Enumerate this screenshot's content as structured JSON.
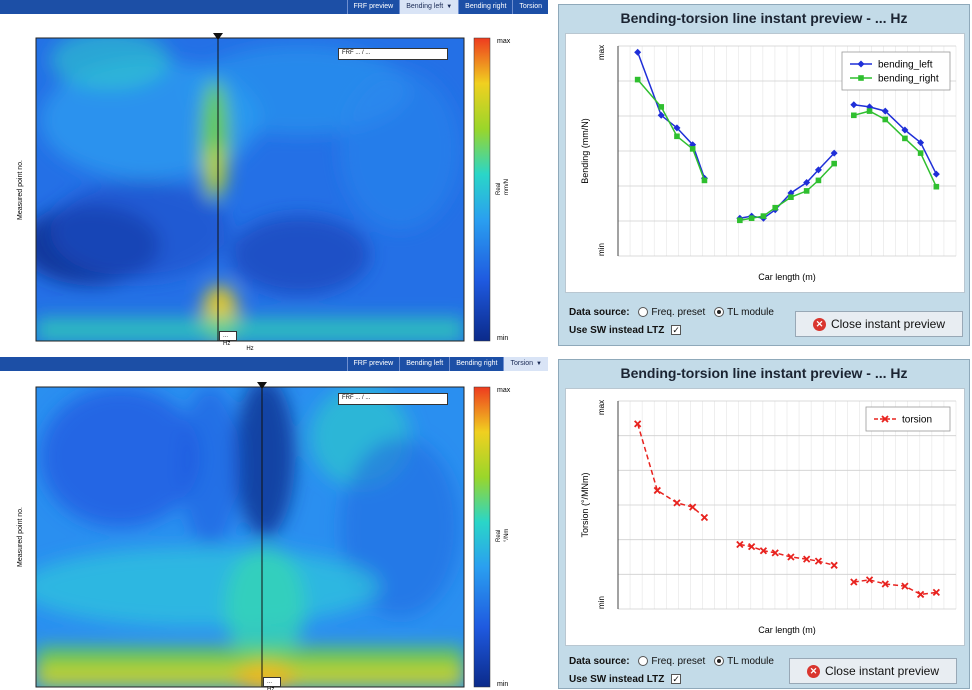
{
  "contour_top": {
    "tabs": [
      "FRF preview",
      "Bending left",
      "Bending right",
      "Torsion"
    ],
    "active_tab": "Bending left",
    "ylabel": "Measured point no.",
    "xlabel": "Hz",
    "frequency_marker": "... Hz",
    "frf_box": "FRF ... / ...",
    "colorbar": {
      "max": "max",
      "min": "min",
      "quantity": "Real",
      "unit": "mm/N"
    }
  },
  "contour_bottom": {
    "tabs": [
      "FRF preview",
      "Bending left",
      "Bending right",
      "Torsion"
    ],
    "active_tab": "Torsion",
    "ylabel": "Measured point no.",
    "frequency_marker": "... Hz",
    "frf_box": "FRF ... / ...",
    "colorbar": {
      "max": "max",
      "min": "min",
      "quantity": "Real",
      "unit": "°/Nm"
    }
  },
  "preview_bending": {
    "title": "Bending-torsion line instant preview -  ...  Hz",
    "data_source_label": "Data source:",
    "radio_freq": "Freq. preset",
    "radio_tl": "TL module",
    "use_sw_label": "Use SW instead LTZ",
    "close_label": "Close instant preview"
  },
  "preview_torsion": {
    "title": "Bending-torsion line instant preview -  ...  Hz",
    "data_source_label": "Data source:",
    "radio_freq": "Freq. preset",
    "radio_tl": "TL module",
    "use_sw_label": "Use SW instead LTZ",
    "close_label": "Close instant preview"
  },
  "colors": {
    "bending_left": "#1f2fd8",
    "bending_right": "#2fbf2f",
    "torsion": "#e8231f",
    "tabbar": "#1c4fa6",
    "preview_bg": "#c3dbe8"
  },
  "chart_data": [
    {
      "type": "line",
      "xlabel": "Car length (m)",
      "ylabel": "Bending (mm/N)",
      "y_tick_max": "max",
      "y_tick_min": "min",
      "legend_position": "top-right",
      "grid": true,
      "series": [
        {
          "name": "bending_left",
          "marker": "diamond",
          "segments": [
            [
              [
                0.5,
                0.97
              ],
              [
                1.1,
                0.67
              ],
              [
                1.5,
                0.61
              ],
              [
                1.9,
                0.53
              ],
              [
                2.2,
                0.37
              ]
            ],
            [
              [
                3.1,
                0.18
              ],
              [
                3.4,
                0.19
              ],
              [
                3.7,
                0.18
              ],
              [
                4.0,
                0.22
              ],
              [
                4.4,
                0.3
              ],
              [
                4.8,
                0.35
              ],
              [
                5.1,
                0.41
              ],
              [
                5.5,
                0.49
              ]
            ],
            [
              [
                6.0,
                0.72
              ],
              [
                6.4,
                0.71
              ],
              [
                6.8,
                0.69
              ],
              [
                7.3,
                0.6
              ],
              [
                7.7,
                0.54
              ],
              [
                8.1,
                0.39
              ]
            ]
          ]
        },
        {
          "name": "bending_right",
          "marker": "square",
          "segments": [
            [
              [
                0.5,
                0.84
              ],
              [
                1.1,
                0.71
              ],
              [
                1.5,
                0.57
              ],
              [
                1.9,
                0.51
              ],
              [
                2.2,
                0.36
              ]
            ],
            [
              [
                3.1,
                0.17
              ],
              [
                3.4,
                0.18
              ],
              [
                3.7,
                0.19
              ],
              [
                4.0,
                0.23
              ],
              [
                4.4,
                0.28
              ],
              [
                4.8,
                0.31
              ],
              [
                5.1,
                0.36
              ],
              [
                5.5,
                0.44
              ]
            ],
            [
              [
                6.0,
                0.67
              ],
              [
                6.4,
                0.69
              ],
              [
                6.8,
                0.65
              ],
              [
                7.3,
                0.56
              ],
              [
                7.7,
                0.49
              ],
              [
                8.1,
                0.33
              ]
            ]
          ]
        }
      ]
    },
    {
      "type": "line",
      "xlabel": "Car length (m)",
      "ylabel": "Torsion (°/MNm)",
      "y_tick_max": "max",
      "y_tick_min": "min",
      "legend_position": "top-right",
      "grid": true,
      "series": [
        {
          "name": "torsion",
          "marker": "x",
          "dashed": true,
          "segments": [
            [
              [
                0.5,
                0.89
              ],
              [
                1.0,
                0.57
              ],
              [
                1.5,
                0.51
              ],
              [
                1.9,
                0.49
              ],
              [
                2.2,
                0.44
              ]
            ],
            [
              [
                3.1,
                0.31
              ],
              [
                3.4,
                0.3
              ],
              [
                3.7,
                0.28
              ],
              [
                4.0,
                0.27
              ],
              [
                4.4,
                0.25
              ],
              [
                4.8,
                0.24
              ],
              [
                5.1,
                0.23
              ],
              [
                5.5,
                0.21
              ]
            ],
            [
              [
                6.0,
                0.13
              ],
              [
                6.4,
                0.14
              ],
              [
                6.8,
                0.12
              ],
              [
                7.3,
                0.11
              ],
              [
                7.7,
                0.07
              ],
              [
                8.1,
                0.08
              ]
            ]
          ]
        }
      ]
    }
  ]
}
